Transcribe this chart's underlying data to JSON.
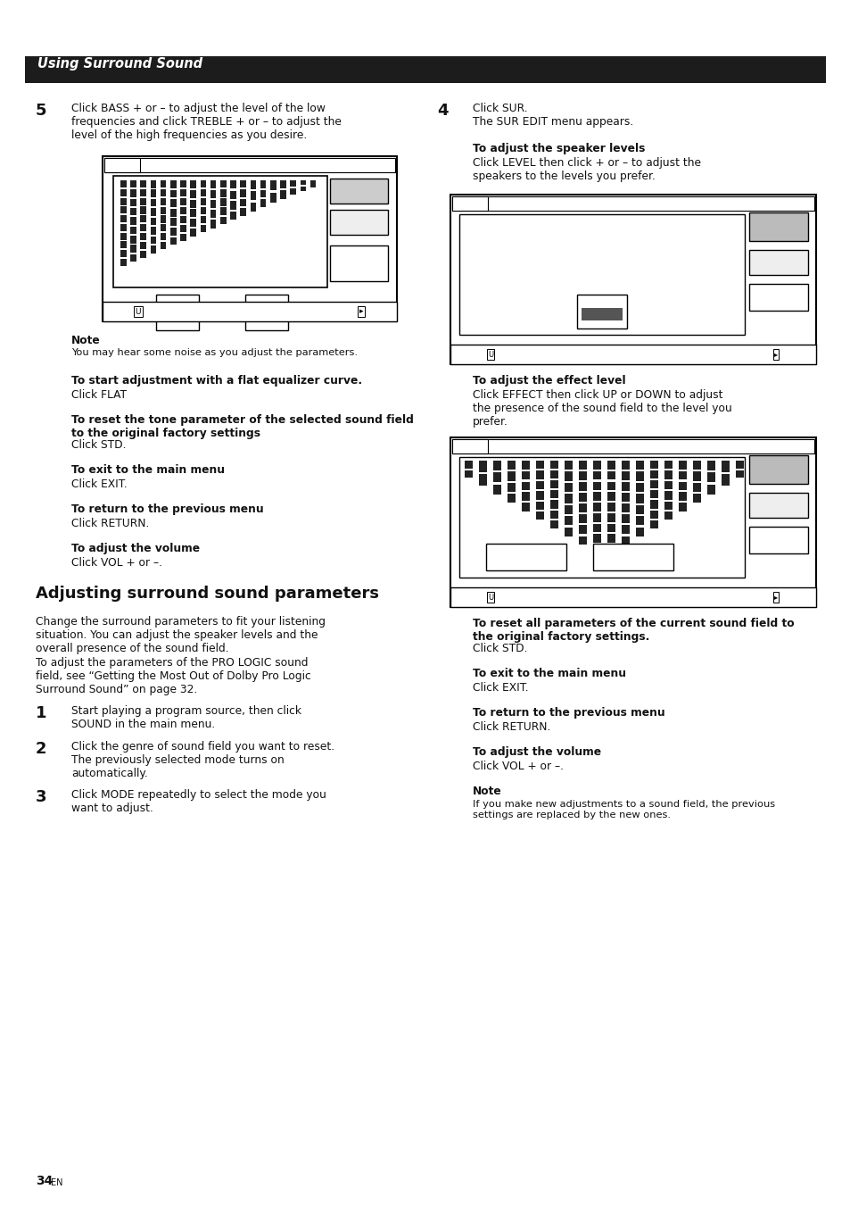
{
  "page_bg": "#ffffff",
  "header_bg": "#1c1c1c",
  "header_text": "Using Surround Sound",
  "header_text_color": "#ffffff",
  "page_number": "34",
  "page_number_suffix": "EN",
  "body_text_color": "#111111",
  "step5_num": "5",
  "step5_text": "Click BASS + or – to adjust the level of the low\nfrequencies and click TREBLE + or – to adjust the\nlevel of the high frequencies as you desire.",
  "note_label": "Note",
  "note_text": "You may hear some noise as you adjust the parameters.",
  "flat_bold": "To start adjustment with a flat equalizer curve.",
  "flat_plain": "Click FLAT",
  "reset_bold": "To reset the tone parameter of the selected sound field\nto the original factory settings",
  "reset_plain": "Click STD.",
  "exit_bold": "To exit to the main menu",
  "exit_plain": "Click EXIT.",
  "return_bold": "To return to the previous menu",
  "return_plain": "Click RETURN.",
  "vol_bold": "To adjust the volume",
  "vol_plain": "Click VOL + or –.",
  "section_title": "Adjusting surround sound parameters",
  "section_intro1": "Change the surround parameters to fit your listening\nsituation. You can adjust the speaker levels and the\noverall presence of the sound field.",
  "section_intro2": "To adjust the parameters of the PRO LOGIC sound\nfield, see “Getting the Most Out of Dolby Pro Logic\nSurround Sound” on page 32.",
  "step1_num": "1",
  "step1_text": "Start playing a program source, then click\nSOUND in the main menu.",
  "step2_num": "2",
  "step2_text": "Click the genre of sound field you want to reset.\nThe previously selected mode turns on\nautomatically.",
  "step3_num": "3",
  "step3_text": "Click MODE repeatedly to select the mode you\nwant to adjust.",
  "step4_num": "4",
  "step4_text": "Click SUR.\nThe SUR EDIT menu appears.",
  "spk_bold": "To adjust the speaker levels",
  "spk_plain": "Click LEVEL then click + or – to adjust the\nspeakers to the levels you prefer.",
  "effect_bold": "To adjust the effect level",
  "effect_plain": "Click EFFECT then click UP or DOWN to adjust\nthe presence of the sound field to the level you\nprefer.",
  "reset2_bold": "To reset all parameters of the current sound field to\nthe original factory settings.",
  "reset2_plain": "Click STD.",
  "exit2_bold": "To exit to the main menu",
  "exit2_plain": "Click EXIT.",
  "return2_bold": "To return to the previous menu",
  "return2_plain": "Click RETURN.",
  "vol2_bold": "To adjust the volume",
  "vol2_plain": "Click VOL + or –.",
  "note2_label": "Note",
  "note2_text": "If you make new adjustments to a sound field, the previous\nsettings are replaced by the new ones."
}
